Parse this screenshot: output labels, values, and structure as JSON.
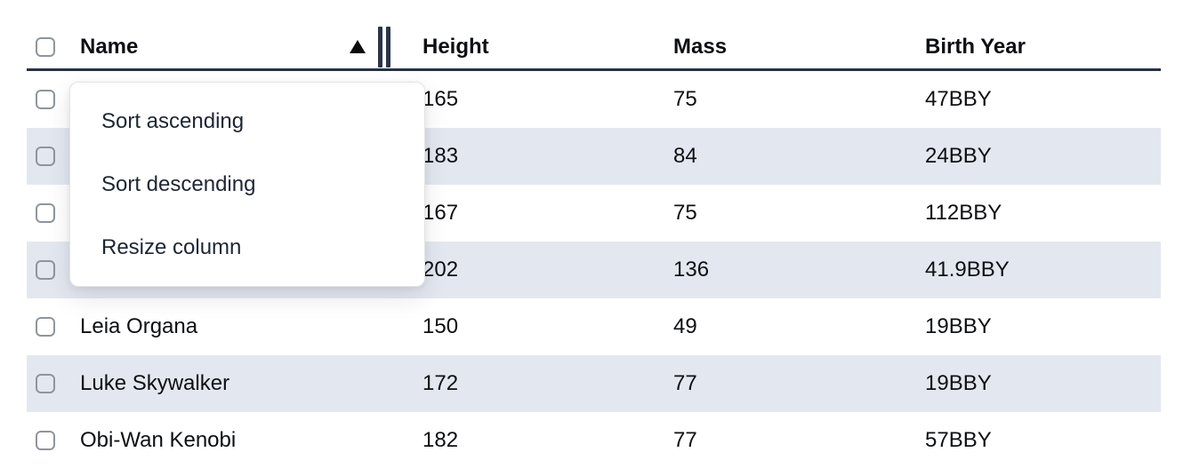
{
  "colors": {
    "stripe": "#e3e8f0",
    "header_border": "#263244",
    "cell_text": "#0d0f12",
    "menu_text": "#1d2635",
    "menu_border": "#e4e4e8",
    "checkbox_border": "#8e959e",
    "resize_handle": "#2a3547",
    "sort_triangle": "#0c0c0c"
  },
  "table": {
    "columns": [
      {
        "label": "Name"
      },
      {
        "label": "Height"
      },
      {
        "label": "Mass"
      },
      {
        "label": "Birth Year"
      }
    ],
    "sort": {
      "column": "Name",
      "direction": "ascending"
    },
    "rows": [
      {
        "name": "",
        "height": "165",
        "mass": "75",
        "birth_year": "47BBY",
        "striped": false,
        "name_hidden_by_menu": true
      },
      {
        "name": "",
        "height": "183",
        "mass": "84",
        "birth_year": "24BBY",
        "striped": true,
        "name_hidden_by_menu": true
      },
      {
        "name": "",
        "height": "167",
        "mass": "75",
        "birth_year": "112BBY",
        "striped": false,
        "name_hidden_by_menu": true
      },
      {
        "name": "",
        "height": "202",
        "mass": "136",
        "birth_year": "41.9BBY",
        "striped": true,
        "name_hidden_by_menu": true
      },
      {
        "name": "Leia Organa",
        "height": "150",
        "mass": "49",
        "birth_year": "19BBY",
        "striped": false,
        "name_hidden_by_menu": false
      },
      {
        "name": "Luke Skywalker",
        "height": "172",
        "mass": "77",
        "birth_year": "19BBY",
        "striped": true,
        "name_hidden_by_menu": false
      },
      {
        "name": "Obi-Wan Kenobi",
        "height": "182",
        "mass": "77",
        "birth_year": "57BBY",
        "striped": false,
        "name_hidden_by_menu": false
      }
    ]
  },
  "context_menu": {
    "items": [
      {
        "label": "Sort ascending"
      },
      {
        "label": "Sort descending"
      },
      {
        "label": "Resize column"
      }
    ]
  }
}
